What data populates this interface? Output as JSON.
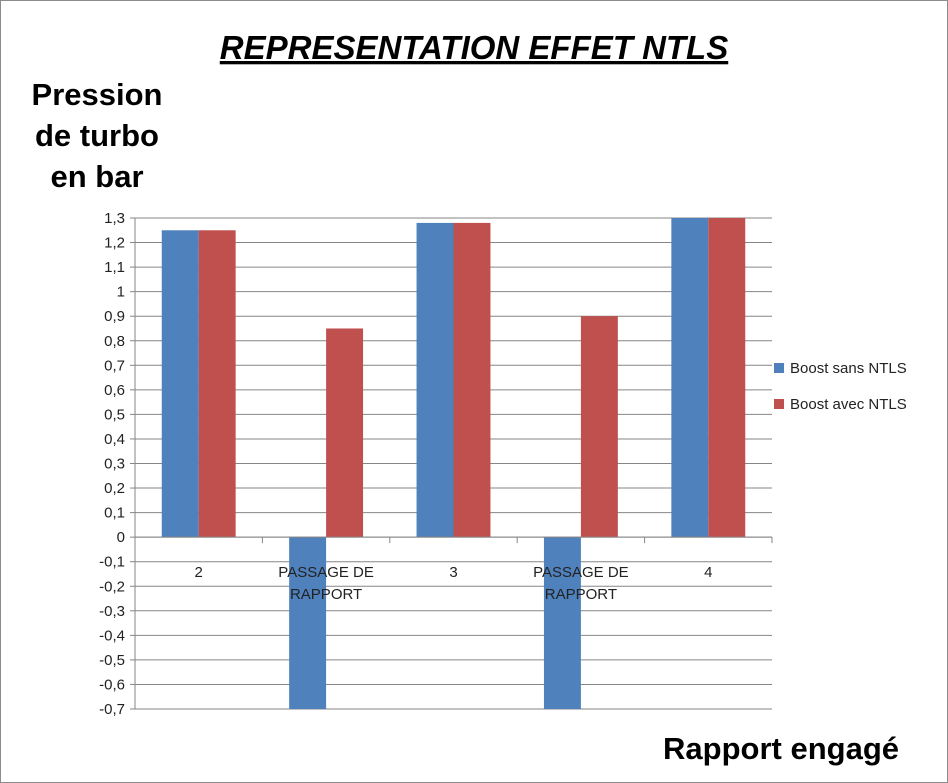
{
  "chart_data": {
    "type": "bar",
    "title": "REPRESENTATION EFFET NTLS",
    "ylabel": [
      "Pression",
      "de turbo",
      "en bar"
    ],
    "xlabel": "Rapport engagé",
    "categories": [
      [
        "2"
      ],
      [
        "PASSAGE DE",
        "RAPPORT"
      ],
      [
        "3"
      ],
      [
        "PASSAGE DE",
        "RAPPORT"
      ],
      [
        "4"
      ]
    ],
    "series": [
      {
        "name": "Boost sans NTLS",
        "color": "#4f81bd",
        "values": [
          1.25,
          -0.7,
          1.28,
          -0.7,
          1.3
        ]
      },
      {
        "name": "Boost avec NTLS",
        "color": "#c0504d",
        "values": [
          1.25,
          0.85,
          1.28,
          0.9,
          1.3
        ]
      }
    ],
    "ylim": [
      -0.7,
      1.3
    ],
    "ytick_step": 0.1,
    "ytick_labels": [
      "-0,7",
      "-0,6",
      "-0,5",
      "-0,4",
      "-0,3",
      "-0,2",
      "-0,1",
      "0",
      "0,1",
      "0,2",
      "0,3",
      "0,4",
      "0,5",
      "0,6",
      "0,7",
      "0,8",
      "0,9",
      "1",
      "1,1",
      "1,2",
      "1,3"
    ],
    "grid": true,
    "legend_position": "right"
  }
}
